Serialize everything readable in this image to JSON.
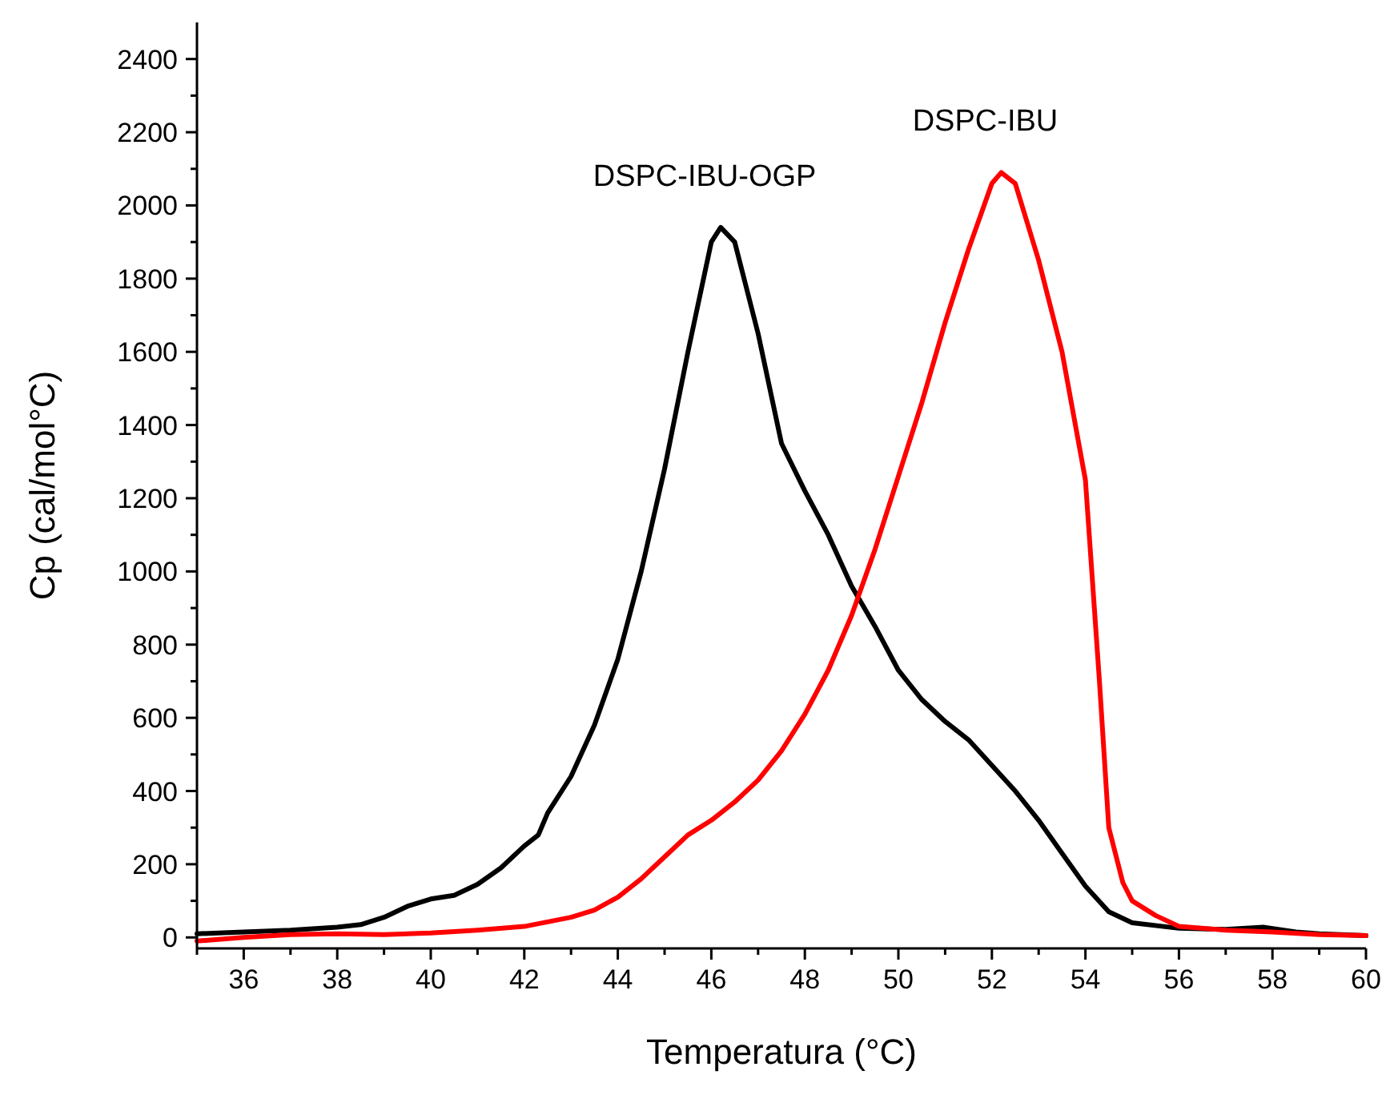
{
  "chart_data": {
    "type": "line",
    "xlabel": "Temperatura (°C)",
    "ylabel": "Cp (cal/mol°C)",
    "xlim": [
      35,
      60
    ],
    "ylim": [
      -30,
      2500
    ],
    "xticks": [
      {
        "value": 35,
        "label": null
      },
      36,
      {
        "value": 37,
        "label": null
      },
      38,
      {
        "value": 39,
        "label": null
      },
      40,
      {
        "value": 41,
        "label": null
      },
      42,
      {
        "value": 43,
        "label": null
      },
      44,
      {
        "value": 45,
        "label": null
      },
      46,
      {
        "value": 47,
        "label": null
      },
      48,
      {
        "value": 49,
        "label": null
      },
      50,
      {
        "value": 51,
        "label": null
      },
      52,
      {
        "value": 53,
        "label": null
      },
      54,
      {
        "value": 55,
        "label": null
      },
      56,
      {
        "value": 57,
        "label": null
      },
      58,
      {
        "value": 59,
        "label": null
      },
      60
    ],
    "yticks": [
      0,
      {
        "value": 100,
        "label": null
      },
      200,
      {
        "value": 300,
        "label": null
      },
      400,
      {
        "value": 500,
        "label": null
      },
      600,
      {
        "value": 700,
        "label": null
      },
      800,
      {
        "value": 900,
        "label": null
      },
      1000,
      {
        "value": 1100,
        "label": null
      },
      1200,
      {
        "value": 1300,
        "label": null
      },
      1400,
      {
        "value": 1500,
        "label": null
      },
      1600,
      {
        "value": 1700,
        "label": null
      },
      1800,
      {
        "value": 1900,
        "label": null
      },
      2000,
      {
        "value": 2100,
        "label": null
      },
      2200,
      {
        "value": 2300,
        "label": null
      },
      2400
    ],
    "grid": false,
    "marker": "none",
    "line_style": "solid",
    "series": [
      {
        "name": "DSPC-IBU-OGP",
        "color": "#000000",
        "x": [
          35,
          36,
          37,
          38,
          38.5,
          39,
          39.5,
          40,
          40.5,
          41,
          41.5,
          42,
          42.3,
          42.5,
          43,
          43.5,
          44,
          44.5,
          45,
          45.5,
          46,
          46.2,
          46.5,
          47,
          47.5,
          48,
          48.5,
          49,
          49.5,
          50,
          50.5,
          51,
          51.5,
          52,
          52.5,
          53,
          53.5,
          54,
          54.5,
          55,
          56,
          57,
          57.8,
          58.5,
          59,
          60
        ],
        "values": [
          10,
          15,
          20,
          28,
          35,
          55,
          85,
          105,
          115,
          145,
          190,
          250,
          280,
          340,
          440,
          580,
          760,
          1000,
          1280,
          1600,
          1900,
          1940,
          1900,
          1650,
          1350,
          1220,
          1100,
          960,
          850,
          730,
          650,
          590,
          540,
          470,
          400,
          320,
          230,
          140,
          70,
          40,
          25,
          22,
          28,
          15,
          10,
          5
        ]
      },
      {
        "name": "DSPC-IBU",
        "color": "#ff0000",
        "x": [
          35,
          36,
          37,
          38,
          39,
          40,
          41,
          42,
          43,
          43.5,
          44,
          44.5,
          45,
          45.5,
          46,
          46.5,
          47,
          47.5,
          48,
          48.5,
          49,
          49.5,
          50,
          50.5,
          51,
          51.5,
          52,
          52.2,
          52.5,
          53,
          53.5,
          54,
          54.3,
          54.5,
          54.8,
          55,
          55.5,
          56,
          57,
          58,
          59,
          60
        ],
        "values": [
          -10,
          0,
          8,
          10,
          8,
          12,
          20,
          30,
          55,
          75,
          110,
          160,
          220,
          280,
          320,
          370,
          430,
          510,
          610,
          730,
          880,
          1060,
          1260,
          1460,
          1680,
          1880,
          2060,
          2090,
          2060,
          1850,
          1600,
          1250,
          700,
          300,
          150,
          100,
          60,
          30,
          20,
          15,
          8,
          5
        ]
      }
    ]
  }
}
